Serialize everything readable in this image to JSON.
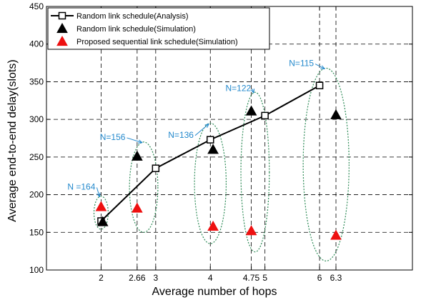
{
  "chart_data": {
    "type": "scatter",
    "xlabel": "Average number of hops",
    "ylabel": "Average end-to-end delay(slots)",
    "xlim": [
      1,
      7.7
    ],
    "ylim": [
      100,
      450
    ],
    "xticks": [
      {
        "value": 2,
        "label": "2"
      },
      {
        "value": 2.66,
        "label": "2.66"
      },
      {
        "value": 3,
        "label": "3"
      },
      {
        "value": 4,
        "label": "4"
      },
      {
        "value": 4.75,
        "label": "4.75"
      },
      {
        "value": 5,
        "label": "5"
      },
      {
        "value": 6,
        "label": "6"
      },
      {
        "value": 6.3,
        "label": "6.3"
      }
    ],
    "yticks": [
      100,
      150,
      200,
      250,
      300,
      350,
      400,
      450
    ],
    "grid": "dashed vertical lines at x ticks, dashed horizontal lines at y ticks",
    "legend_position": "top-left",
    "series": [
      {
        "name": "Random link schedule(Analysis)",
        "style": "line-square",
        "color": "#000000",
        "points": [
          [
            2,
            165
          ],
          [
            3,
            235
          ],
          [
            4,
            273
          ],
          [
            5,
            305
          ],
          [
            6,
            345
          ]
        ]
      },
      {
        "name": "Random link schedule(Simulation)",
        "style": "triangle",
        "color": "#000000",
        "points": [
          [
            2.03,
            164
          ],
          [
            2.66,
            251
          ],
          [
            4.05,
            260
          ],
          [
            4.75,
            311
          ],
          [
            6.3,
            306
          ]
        ]
      },
      {
        "name": "Proposed sequential link schedule(Simulation)",
        "style": "triangle",
        "color": "#ee1111",
        "points": [
          [
            2,
            184
          ],
          [
            2.66,
            182
          ],
          [
            4.05,
            158
          ],
          [
            4.75,
            152
          ],
          [
            6.3,
            146
          ]
        ]
      }
    ],
    "annotations": [
      {
        "text": "N =164",
        "color": "#2288cc",
        "anchor_data": [
          2,
          201
        ],
        "ellipse": {
          "cx": 2,
          "cy": 176,
          "rx": 0.13,
          "ry": 22
        }
      },
      {
        "text": "N=156",
        "color": "#2288cc",
        "anchor_data": [
          2.55,
          267
        ],
        "ellipse": {
          "cx": 2.78,
          "cy": 210,
          "rx": 0.26,
          "ry": 60
        }
      },
      {
        "text": "N=136",
        "color": "#2288cc",
        "anchor_data": [
          3.8,
          270
        ],
        "ellipse": {
          "cx": 4.0,
          "cy": 215,
          "rx": 0.29,
          "ry": 80
        }
      },
      {
        "text": "N=122",
        "color": "#2288cc",
        "anchor_data": [
          4.85,
          332
        ],
        "ellipse": {
          "cx": 4.82,
          "cy": 230,
          "rx": 0.26,
          "ry": 106
        }
      },
      {
        "text": "N=115",
        "color": "#2288cc",
        "anchor_data": [
          6.0,
          365
        ],
        "ellipse": {
          "cx": 6.12,
          "cy": 240,
          "rx": 0.42,
          "ry": 128
        }
      }
    ],
    "colors": {
      "annotation": "#2288cc",
      "ellipse": "#2e8b57",
      "red_marker": "#ee1111"
    }
  }
}
